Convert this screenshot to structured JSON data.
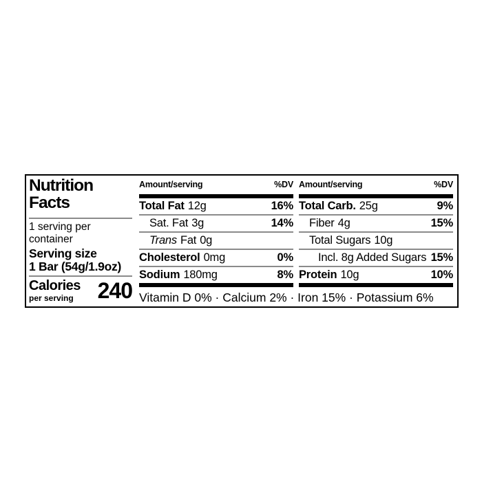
{
  "nutrition_label": {
    "title_line1": "Nutrition",
    "title_line2": "Facts",
    "servings_line1": "1 serving per",
    "servings_line2": "container",
    "serving_size_label": "Serving size",
    "serving_size_value": "1 Bar (54g/1.9oz)",
    "calories": {
      "label": "Calories",
      "sublabel": "per serving",
      "value": "240"
    },
    "fat_column": {
      "header_amount": "Amount/serving",
      "header_dv": "%DV",
      "rows": [
        {
          "name": "Total Fat",
          "amount": "12g",
          "dv": "16%"
        },
        {
          "name": "Sat. Fat",
          "amount": "3g",
          "dv": "14%"
        },
        {
          "name_italic": "Trans",
          "name": "Fat",
          "amount": "0g",
          "dv": ""
        },
        {
          "name": "Cholesterol",
          "amount": "0mg",
          "dv": "0%"
        },
        {
          "name": "Sodium",
          "amount": "180mg",
          "dv": "8%"
        }
      ]
    },
    "carb_column": {
      "header_amount": "Amount/serving",
      "header_dv": "%DV",
      "rows": [
        {
          "name": "Total Carb.",
          "amount": "25g",
          "dv": "9%"
        },
        {
          "name": "Fiber",
          "amount": "4g",
          "dv": "15%"
        },
        {
          "name": "Total Sugars",
          "amount": "10g",
          "dv": ""
        },
        {
          "name": "Incl. 8g Added Sugars",
          "amount": "",
          "dv": "15%"
        },
        {
          "name": "Protein",
          "amount": "10g",
          "dv": "10%"
        }
      ]
    },
    "micronutrients": "Vitamin D 0% · Calcium 2% · Iron 15% · Potassium 6%"
  },
  "colors": {
    "text": "#000000",
    "hairline": "#8a8a8a",
    "thick_bar": "#000000",
    "border": "#000000",
    "background": "#ffffff"
  }
}
